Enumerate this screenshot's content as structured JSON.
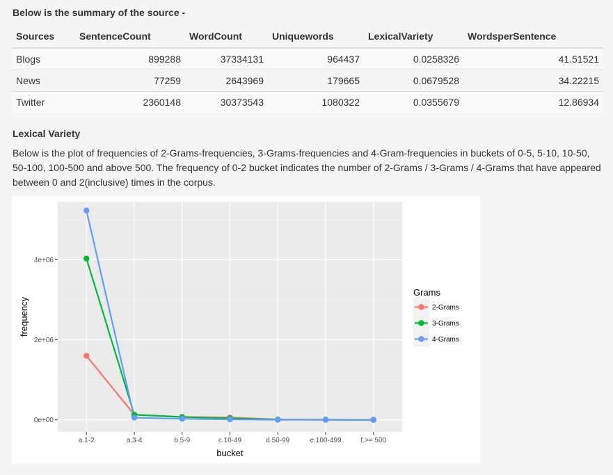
{
  "summary_heading": "Below is the summary of the source -",
  "table": {
    "headers": [
      "Sources",
      "SentenceCount",
      "WordCount",
      "Uniquewords",
      "LexicalVariety",
      "WordsperSentence"
    ],
    "rows": [
      [
        "Blogs",
        "899288",
        "37334131",
        "964437",
        "0.0258326",
        "41.51521"
      ],
      [
        "News",
        "77259",
        "2643969",
        "179665",
        "0.0679528",
        "34.22215"
      ],
      [
        "Twitter",
        "2360148",
        "30373543",
        "1080322",
        "0.0355679",
        "12.86934"
      ]
    ]
  },
  "lexical_heading": "Lexical Variety",
  "description": "Below is the plot of frequencies of 2-Grams-frequencies, 3-Grams-frequencies and 4-Gram-frequencies in buckets of 0-5, 5-10, 10-50, 50-100, 100-500 and above 500. The frequency of 0-2 bucket indicates the number of 2-Grams / 3-Grams / 4-Grams that have appeared between 0 and 2(inclusive) times in the corpus.",
  "chart_data": {
    "type": "line",
    "title": "",
    "xlabel": "bucket",
    "ylabel": "frequency",
    "categories": [
      "a.1-2",
      "a.3-4",
      "b.5-9",
      "c.10-49",
      "d.50-99",
      "e.100-499",
      "f.>= 500"
    ],
    "ylim": [
      -300000,
      5450000
    ],
    "yticks": [
      0,
      2000000,
      4000000
    ],
    "ytick_labels": [
      "0e+00",
      "2e+06",
      "4e+06"
    ],
    "grid": true,
    "legend_title": "Grams",
    "legend_position": "right",
    "series": [
      {
        "name": "2-Grams",
        "color": "#F8766D",
        "values": [
          1600000,
          130000,
          75000,
          60000,
          12000,
          6000,
          1000
        ]
      },
      {
        "name": "3-Grams",
        "color": "#00BA38",
        "values": [
          4030000,
          130000,
          70000,
          40000,
          8000,
          4000,
          500
        ]
      },
      {
        "name": "4-Grams",
        "color": "#619CFF",
        "values": [
          5230000,
          55000,
          25000,
          12000,
          3000,
          1500,
          200
        ]
      }
    ]
  }
}
